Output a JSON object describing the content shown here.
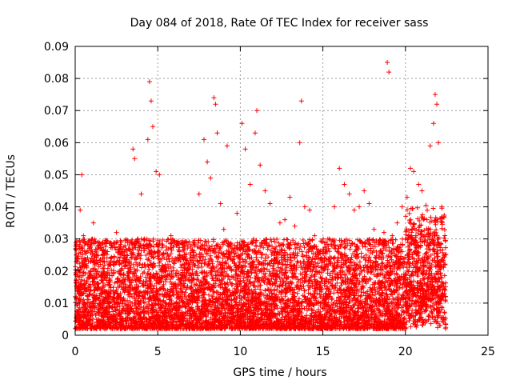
{
  "chart_data": {
    "type": "scatter",
    "title": "Day 084 of 2018, Rate Of TEC Index for receiver sass",
    "xlabel": "GPS time / hours",
    "ylabel": "ROTI / TECUs",
    "xlim": [
      0,
      25
    ],
    "ylim": [
      0,
      0.09
    ],
    "x_ticks": [
      0,
      5,
      10,
      15,
      20,
      25
    ],
    "x_tick_labels": [
      "0",
      "5",
      "10",
      "15",
      "20",
      "25"
    ],
    "y_ticks": [
      0,
      0.01,
      0.02,
      0.03,
      0.04,
      0.05,
      0.06,
      0.07,
      0.08,
      0.09
    ],
    "y_tick_labels": [
      "0",
      "0.01",
      "0.02",
      "0.03",
      "0.04",
      "0.05",
      "0.06",
      "0.07",
      "0.08",
      "0.09"
    ],
    "grid": true,
    "marker": "+",
    "marker_color": "#ff0000",
    "series": [
      {
        "points": [
          [
            0.0,
            0.012
          ],
          [
            0.2,
            0.008
          ],
          [
            0.3,
            0.039
          ],
          [
            0.4,
            0.05
          ],
          [
            0.5,
            0.031
          ],
          [
            0.7,
            0.021
          ],
          [
            0.9,
            0.015
          ],
          [
            1.1,
            0.035
          ],
          [
            1.3,
            0.011
          ],
          [
            1.5,
            0.027
          ],
          [
            1.7,
            0.007
          ],
          [
            1.9,
            0.018
          ],
          [
            2.1,
            0.013
          ],
          [
            2.3,
            0.022
          ],
          [
            2.5,
            0.032
          ],
          [
            2.7,
            0.009
          ],
          [
            2.9,
            0.016
          ],
          [
            3.1,
            0.025
          ],
          [
            3.3,
            0.012
          ],
          [
            3.5,
            0.058
          ],
          [
            3.6,
            0.055
          ],
          [
            3.8,
            0.03
          ],
          [
            4.0,
            0.044
          ],
          [
            4.2,
            0.03
          ],
          [
            4.4,
            0.061
          ],
          [
            4.5,
            0.079
          ],
          [
            4.6,
            0.073
          ],
          [
            4.7,
            0.065
          ],
          [
            4.9,
            0.051
          ],
          [
            5.1,
            0.05
          ],
          [
            5.3,
            0.028
          ],
          [
            5.5,
            0.02
          ],
          [
            5.8,
            0.031
          ],
          [
            6.0,
            0.015
          ],
          [
            6.3,
            0.026
          ],
          [
            6.6,
            0.01
          ],
          [
            6.9,
            0.022
          ],
          [
            7.2,
            0.028
          ],
          [
            7.5,
            0.044
          ],
          [
            7.8,
            0.061
          ],
          [
            8.0,
            0.054
          ],
          [
            8.2,
            0.049
          ],
          [
            8.4,
            0.074
          ],
          [
            8.5,
            0.072
          ],
          [
            8.6,
            0.063
          ],
          [
            8.8,
            0.041
          ],
          [
            9.0,
            0.033
          ],
          [
            9.2,
            0.059
          ],
          [
            9.5,
            0.027
          ],
          [
            9.8,
            0.038
          ],
          [
            10.1,
            0.066
          ],
          [
            10.3,
            0.058
          ],
          [
            10.6,
            0.047
          ],
          [
            10.9,
            0.063
          ],
          [
            11.0,
            0.07
          ],
          [
            11.2,
            0.053
          ],
          [
            11.5,
            0.045
          ],
          [
            11.8,
            0.041
          ],
          [
            12.1,
            0.029
          ],
          [
            12.4,
            0.035
          ],
          [
            12.7,
            0.036
          ],
          [
            13.0,
            0.043
          ],
          [
            13.3,
            0.034
          ],
          [
            13.6,
            0.06
          ],
          [
            13.7,
            0.073
          ],
          [
            13.9,
            0.04
          ],
          [
            14.2,
            0.039
          ],
          [
            14.5,
            0.031
          ],
          [
            14.8,
            0.026
          ],
          [
            15.1,
            0.024
          ],
          [
            15.4,
            0.03
          ],
          [
            15.7,
            0.04
          ],
          [
            16.0,
            0.052
          ],
          [
            16.3,
            0.047
          ],
          [
            16.6,
            0.044
          ],
          [
            16.9,
            0.039
          ],
          [
            17.2,
            0.04
          ],
          [
            17.5,
            0.045
          ],
          [
            17.8,
            0.041
          ],
          [
            18.1,
            0.033
          ],
          [
            18.4,
            0.029
          ],
          [
            18.7,
            0.032
          ],
          [
            18.9,
            0.085
          ],
          [
            19.0,
            0.082
          ],
          [
            19.2,
            0.031
          ],
          [
            19.5,
            0.035
          ],
          [
            19.8,
            0.04
          ],
          [
            20.1,
            0.043
          ],
          [
            20.3,
            0.052
          ],
          [
            20.5,
            0.051
          ],
          [
            20.8,
            0.047
          ],
          [
            21.0,
            0.045
          ],
          [
            21.3,
            0.036
          ],
          [
            21.5,
            0.059
          ],
          [
            21.7,
            0.066
          ],
          [
            21.8,
            0.075
          ],
          [
            21.9,
            0.072
          ],
          [
            22.0,
            0.06
          ],
          [
            22.2,
            0.04
          ],
          [
            22.4,
            0.025
          ],
          [
            0.1,
            0.005
          ],
          [
            0.6,
            0.003
          ],
          [
            1.0,
            0.002
          ],
          [
            1.6,
            0.004
          ],
          [
            2.2,
            0.006
          ],
          [
            2.8,
            0.003
          ],
          [
            3.4,
            0.005
          ],
          [
            4.1,
            0.004
          ],
          [
            4.8,
            0.006
          ],
          [
            5.6,
            0.003
          ],
          [
            6.4,
            0.005
          ],
          [
            7.1,
            0.004
          ],
          [
            7.9,
            0.006
          ],
          [
            8.7,
            0.005
          ],
          [
            9.4,
            0.004
          ],
          [
            10.2,
            0.006
          ],
          [
            11.1,
            0.005
          ],
          [
            11.9,
            0.004
          ],
          [
            12.8,
            0.006
          ],
          [
            13.5,
            0.005
          ],
          [
            14.4,
            0.003
          ],
          [
            15.2,
            0.006
          ],
          [
            16.1,
            0.004
          ],
          [
            16.8,
            0.005
          ],
          [
            17.7,
            0.006
          ],
          [
            18.5,
            0.004
          ],
          [
            19.4,
            0.005
          ],
          [
            20.2,
            0.006
          ],
          [
            21.1,
            0.004
          ],
          [
            22.1,
            0.003
          ],
          [
            22.3,
            0.004
          ]
        ]
      }
    ]
  }
}
